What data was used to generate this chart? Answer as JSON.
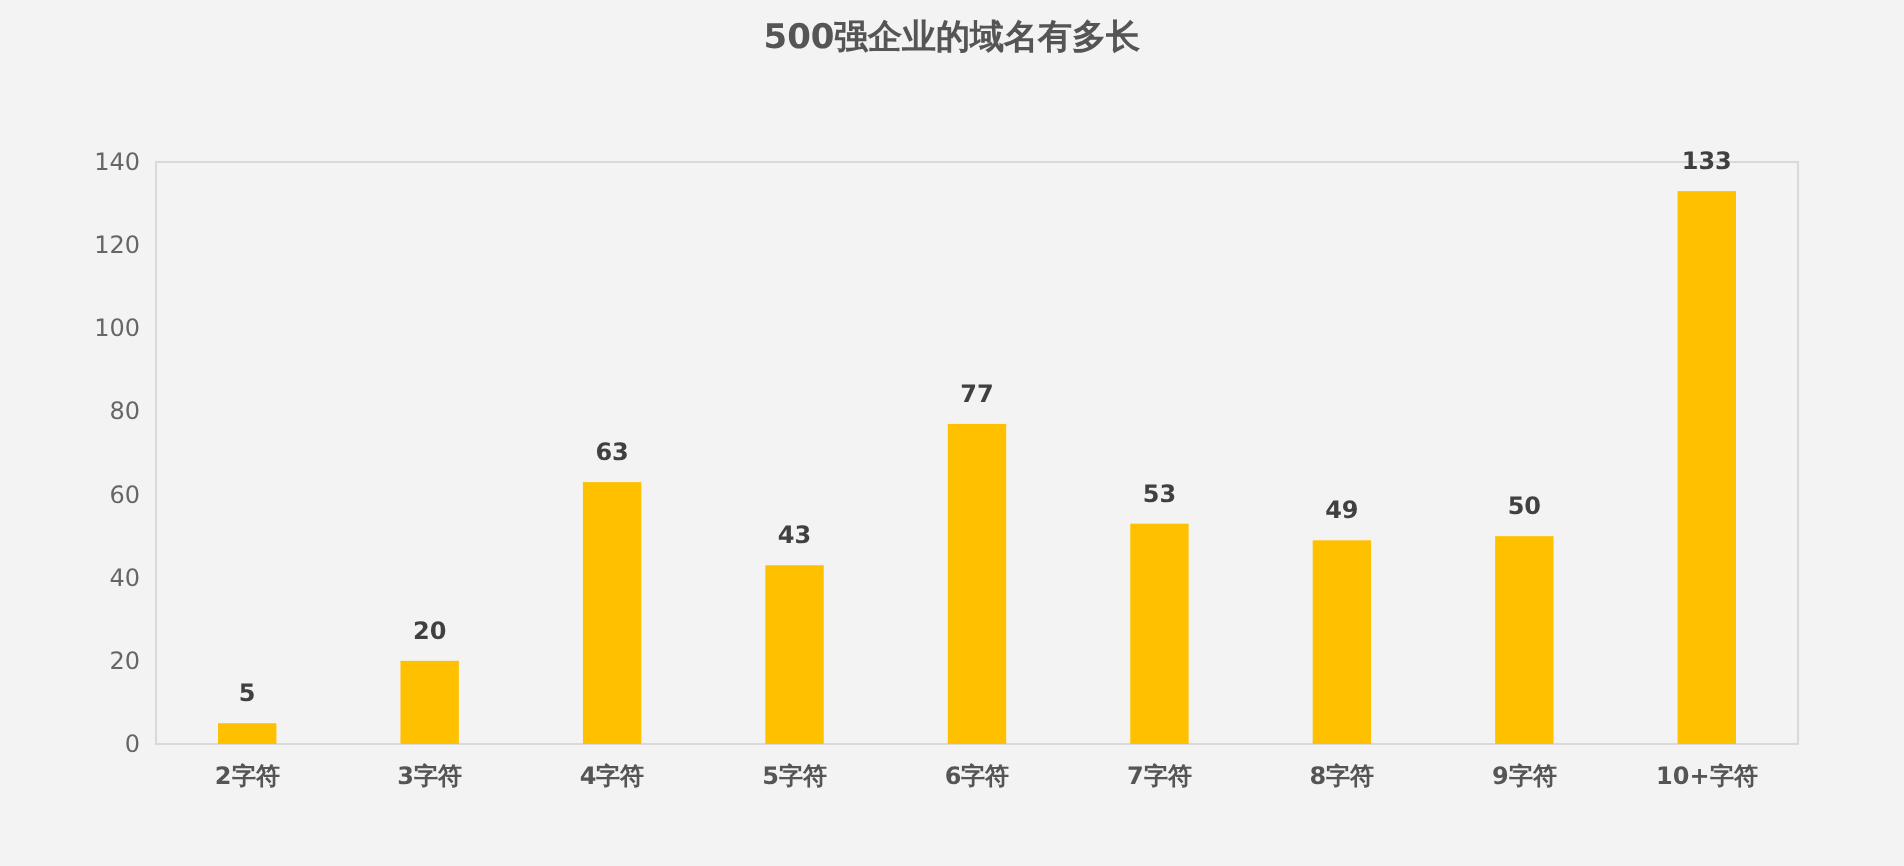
{
  "chart_data": {
    "type": "bar",
    "title": "500强企业的域名有多长",
    "categories": [
      "2字符",
      "3字符",
      "4字符",
      "5字符",
      "6字符",
      "7字符",
      "8字符",
      "9字符",
      "10+字符"
    ],
    "values": [
      5,
      20,
      63,
      43,
      77,
      53,
      49,
      50,
      133
    ],
    "color": "#ffc000",
    "ylim": [
      0,
      140
    ],
    "yticks": [
      0,
      20,
      40,
      60,
      80,
      100,
      120,
      140
    ],
    "data_labels": true
  }
}
